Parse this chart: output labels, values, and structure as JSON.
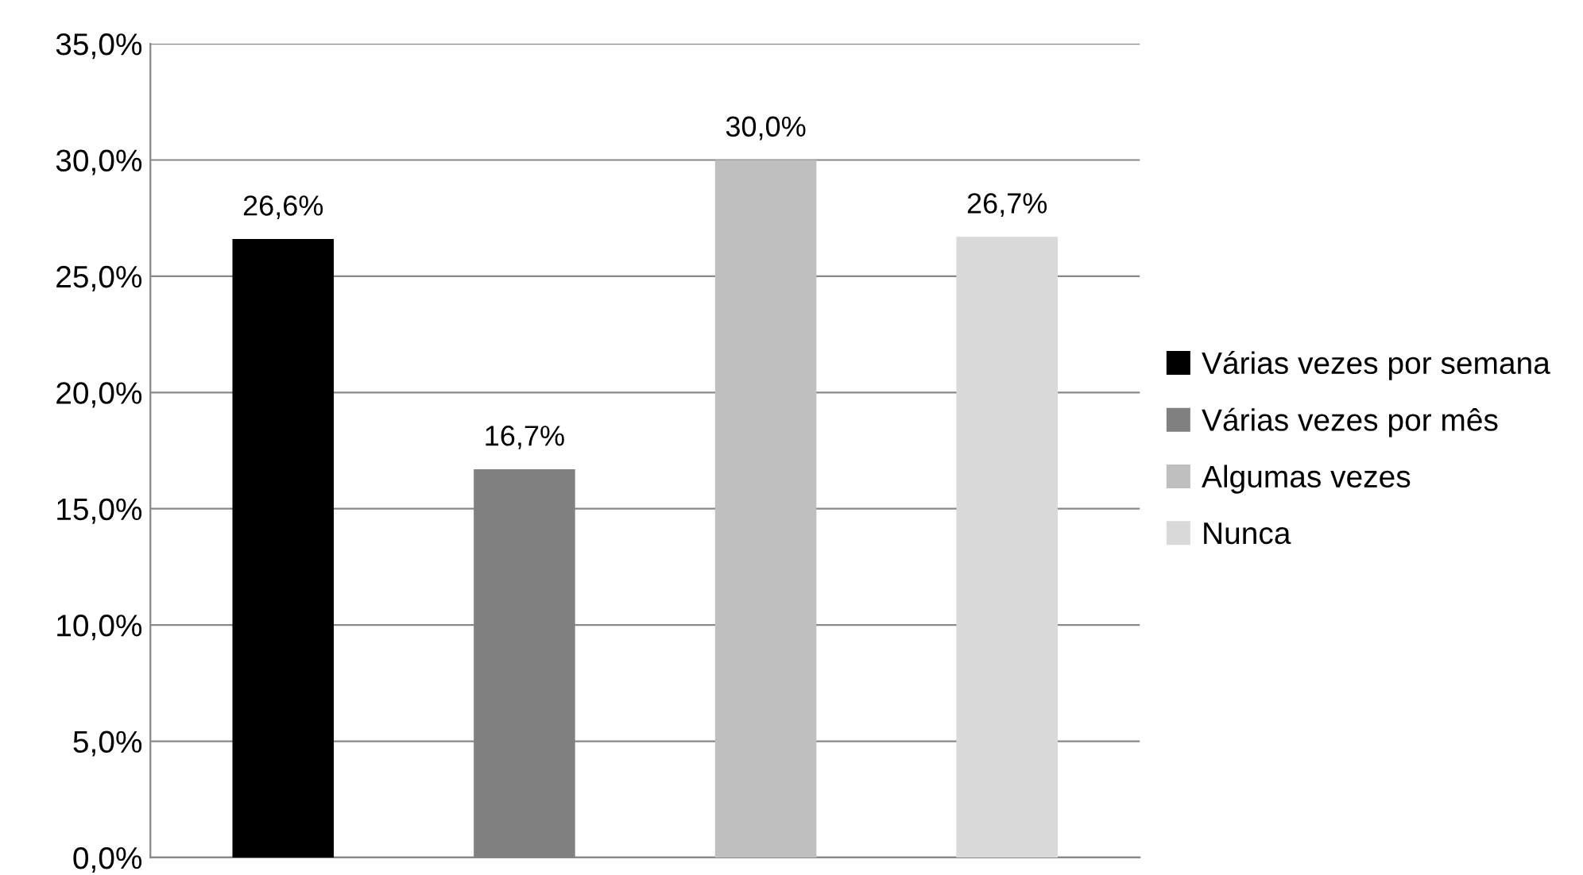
{
  "chart_data": {
    "type": "bar",
    "categories": [
      null,
      null,
      null,
      null
    ],
    "series": [
      {
        "name": "Várias vezes por semana",
        "color": "#000000",
        "values": [
          26.6,
          null,
          null,
          null
        ],
        "value_labels": [
          "26,6%",
          null,
          null,
          null
        ]
      },
      {
        "name": "Várias vezes por mês",
        "color": "#808080",
        "values": [
          null,
          16.7,
          null,
          null
        ],
        "value_labels": [
          null,
          "16,7%",
          null,
          null
        ]
      },
      {
        "name": "Algumas vezes",
        "color": "#bfbfbf",
        "values": [
          null,
          null,
          30.0,
          null
        ],
        "value_labels": [
          null,
          null,
          "30,0%",
          null
        ]
      },
      {
        "name": "Nunca",
        "color": "#d9d9d9",
        "values": [
          null,
          null,
          null,
          26.7
        ],
        "value_labels": [
          null,
          null,
          null,
          "26,7%"
        ]
      }
    ],
    "ylim": [
      0,
      35
    ],
    "yticks": [
      {
        "value": 0,
        "label": "0,0%"
      },
      {
        "value": 5,
        "label": "5,0%"
      },
      {
        "value": 10,
        "label": "10,0%"
      },
      {
        "value": 15,
        "label": "15,0%"
      },
      {
        "value": 20,
        "label": "20,0%"
      },
      {
        "value": 25,
        "label": "25,0%"
      },
      {
        "value": 30,
        "label": "30,0%"
      },
      {
        "value": 35,
        "label": "35,0%"
      }
    ],
    "grid": "y",
    "legend": "right",
    "tick_labels": "y"
  }
}
